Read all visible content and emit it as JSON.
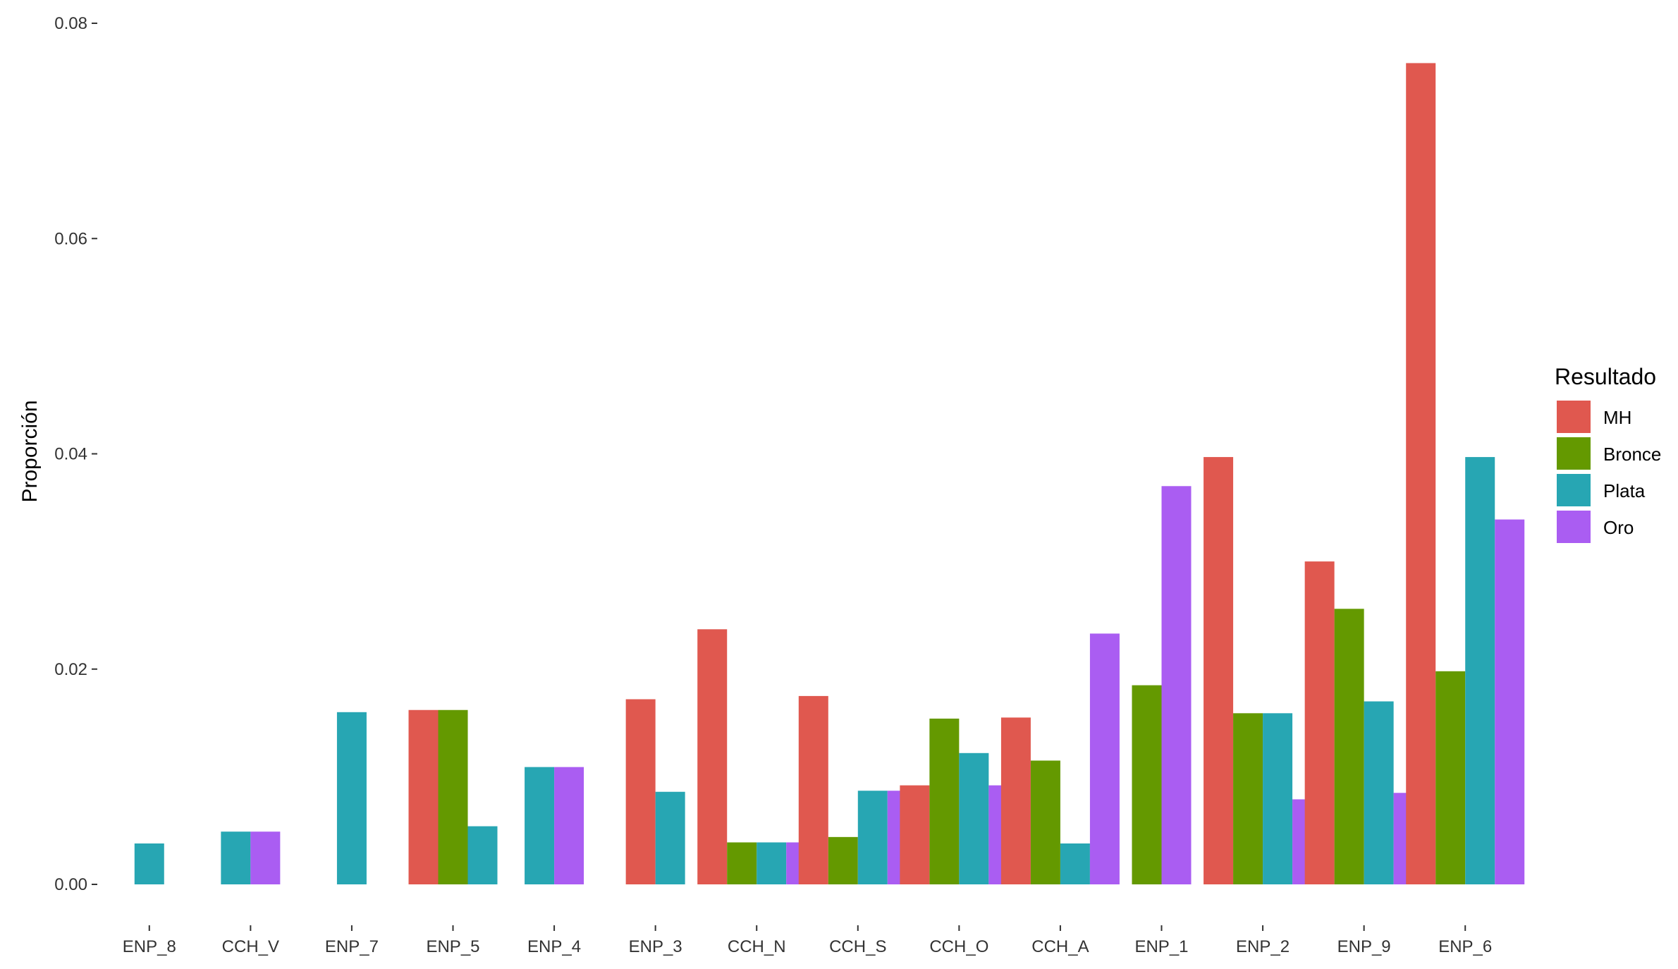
{
  "chart_data": {
    "type": "bar",
    "title": "",
    "xlabel": "",
    "ylabel": "Proporción",
    "ylim": [
      0,
      0.08
    ],
    "yticks": [
      "0.00",
      "0.02",
      "0.04",
      "0.06",
      "0.08"
    ],
    "grid": false,
    "legend_position": "right",
    "legend_title": "Resultado",
    "categories": [
      "ENP_8",
      "CCH_V",
      "ENP_7",
      "ENP_5",
      "ENP_4",
      "ENP_3",
      "CCH_N",
      "CCH_S",
      "CCH_O",
      "CCH_A",
      "ENP_1",
      "ENP_2",
      "ENP_9",
      "ENP_6"
    ],
    "series": [
      {
        "name": "MH",
        "color": "#E0584F",
        "values": [
          null,
          null,
          null,
          0.0162,
          null,
          0.0172,
          0.0237,
          0.0175,
          0.0092,
          0.0155,
          null,
          0.0397,
          0.03,
          0.0763
        ]
      },
      {
        "name": "Bronce",
        "color": "#649900",
        "values": [
          null,
          null,
          null,
          0.0162,
          null,
          null,
          0.0039,
          0.0044,
          0.0154,
          0.0115,
          0.0185,
          0.0159,
          0.0256,
          0.0198
        ]
      },
      {
        "name": "Plata",
        "color": "#27A6B3",
        "values": [
          0.0038,
          0.0049,
          0.016,
          0.0054,
          0.0109,
          0.0086,
          0.0039,
          0.0087,
          0.0122,
          0.0038,
          null,
          0.0159,
          0.017,
          0.0397
        ]
      },
      {
        "name": "Oro",
        "color": "#AA5DF2",
        "values": [
          null,
          0.0049,
          null,
          null,
          0.0109,
          null,
          0.0039,
          0.0087,
          0.0092,
          0.0233,
          0.037,
          0.0079,
          0.0085,
          0.0339
        ]
      }
    ]
  }
}
